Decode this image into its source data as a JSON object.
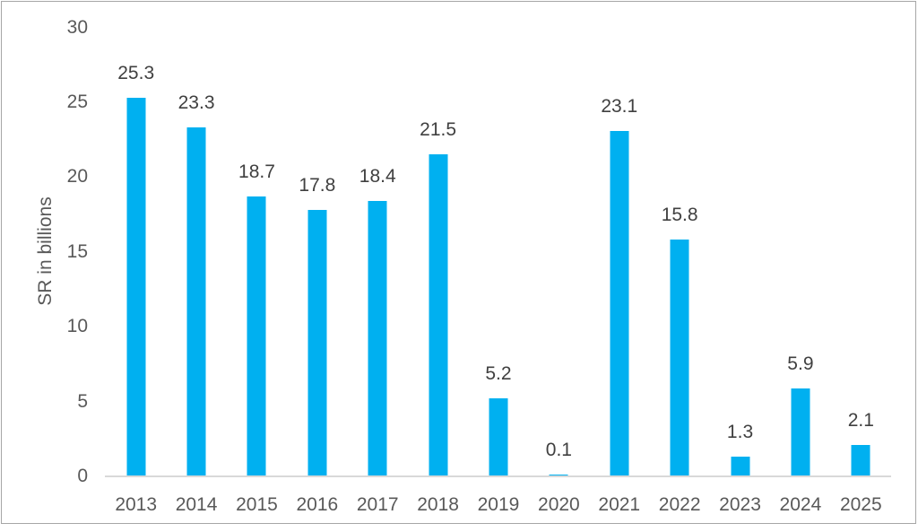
{
  "chart_data": {
    "type": "bar",
    "title": "",
    "xlabel": "",
    "ylabel": "SR in billions",
    "categories": [
      "2013",
      "2014",
      "2015",
      "2016",
      "2017",
      "2018",
      "2019",
      "2020",
      "2021",
      "2022",
      "2023",
      "2024",
      "2025"
    ],
    "values": [
      25.3,
      23.3,
      18.7,
      17.8,
      18.4,
      21.5,
      5.2,
      0.1,
      23.1,
      15.8,
      1.3,
      5.9,
      2.1
    ],
    "data_labels": [
      "25.3",
      "23.3",
      "18.7",
      "17.8",
      "18.4",
      "21.5",
      "5.2",
      "0.1",
      "23.1",
      "15.8",
      "1.3",
      "5.9",
      "2.1"
    ],
    "ylim": [
      0,
      30
    ],
    "yticks": [
      "0",
      "5",
      "10",
      "15",
      "20",
      "25",
      "30"
    ],
    "grid": false,
    "legend_position": "none",
    "bar_color": "#00b0f0",
    "axis_line_color": "#d9d9d9",
    "tick_label_color": "#595959",
    "data_label_color": "#404040",
    "frame_border_color": "#a6a6a6"
  }
}
